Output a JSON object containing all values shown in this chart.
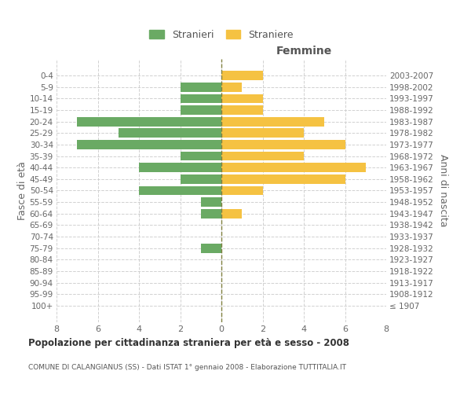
{
  "age_groups": [
    "100+",
    "95-99",
    "90-94",
    "85-89",
    "80-84",
    "75-79",
    "70-74",
    "65-69",
    "60-64",
    "55-59",
    "50-54",
    "45-49",
    "40-44",
    "35-39",
    "30-34",
    "25-29",
    "20-24",
    "15-19",
    "10-14",
    "5-9",
    "0-4"
  ],
  "birth_years": [
    "≤ 1907",
    "1908-1912",
    "1913-1917",
    "1918-1922",
    "1923-1927",
    "1928-1932",
    "1933-1937",
    "1938-1942",
    "1943-1947",
    "1948-1952",
    "1953-1957",
    "1958-1962",
    "1963-1967",
    "1968-1972",
    "1973-1977",
    "1978-1982",
    "1983-1987",
    "1988-1992",
    "1993-1997",
    "1998-2002",
    "2003-2007"
  ],
  "males": [
    0,
    0,
    0,
    0,
    0,
    1,
    0,
    0,
    1,
    1,
    4,
    2,
    4,
    2,
    7,
    5,
    7,
    2,
    2,
    2,
    0
  ],
  "females": [
    0,
    0,
    0,
    0,
    0,
    0,
    0,
    0,
    1,
    0,
    2,
    6,
    7,
    4,
    6,
    4,
    5,
    2,
    2,
    1,
    2
  ],
  "male_color": "#6aaa64",
  "female_color": "#f5c242",
  "center_line_color": "#808040",
  "grid_color": "#cccccc",
  "bar_height": 0.8,
  "xlim": 8,
  "title_main": "Popolazione per cittadinanza straniera per età e sesso - 2008",
  "title_sub": "COMUNE DI CALANGIANUS (SS) - Dati ISTAT 1° gennaio 2008 - Elaborazione TUTTITALIA.IT",
  "ylabel_left": "Fasce di età",
  "ylabel_right": "Anni di nascita",
  "xlabel_right": "Femmine",
  "legend_male": "Stranieri",
  "legend_female": "Straniere",
  "background_color": "#ffffff"
}
